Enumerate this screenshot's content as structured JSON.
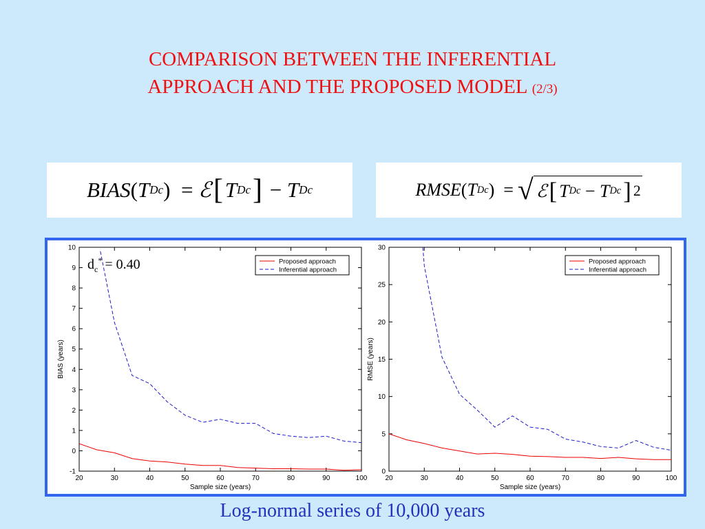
{
  "slide": {
    "title_line1": "COMPARISON BETWEEN THE INFERENTIAL",
    "title_line2": "APPROACH AND THE PROPOSED MODEL",
    "title_suffix": "(2/3)",
    "caption": "Log-normal series of 10,000 years"
  },
  "formulas": {
    "bias": {
      "lhs": "BIAS",
      "var": "T",
      "sub": "Dc",
      "equals": "=",
      "expect": "ℰ",
      "minus": "−"
    },
    "rmse": {
      "lhs": "RMSE",
      "var": "T",
      "sub": "Dc",
      "equals": "=",
      "expect": "ℰ",
      "minus": "−",
      "power": "2"
    }
  },
  "colors": {
    "proposed": "#ee0000",
    "inferential": "#1a1acc",
    "panel_border": "#3366ee",
    "title": "#ee1111",
    "caption": "#2233bb"
  },
  "chart_data": [
    {
      "type": "line",
      "xlabel": "Sample size (years)",
      "ylabel": "BIAS (years)",
      "xlim": [
        20,
        100
      ],
      "ylim": [
        -1,
        10
      ],
      "xticks": [
        20,
        30,
        40,
        50,
        60,
        70,
        80,
        90,
        100
      ],
      "yticks": [
        -1,
        0,
        1,
        2,
        3,
        4,
        5,
        6,
        7,
        8,
        9,
        10
      ],
      "legend_position": "top-right",
      "annotation": {
        "base": "d",
        "sub": "c",
        "sup": "*",
        "text": "= 0.40"
      },
      "x": [
        20,
        25,
        30,
        35,
        40,
        45,
        50,
        55,
        60,
        65,
        70,
        75,
        80,
        85,
        90,
        95,
        100
      ],
      "series": [
        {
          "name": "Proposed approach",
          "style": "solid",
          "values": [
            0.35,
            0.05,
            -0.1,
            -0.38,
            -0.5,
            -0.55,
            -0.65,
            -0.72,
            -0.72,
            -0.82,
            -0.85,
            -0.88,
            -0.88,
            -0.9,
            -0.9,
            -0.96,
            -0.93
          ]
        },
        {
          "name": "Inferential approach",
          "style": "dashed",
          "x": [
            26,
            30,
            35,
            40,
            45,
            50,
            55,
            60,
            65,
            70,
            75,
            80,
            85,
            90,
            95,
            100
          ],
          "values": [
            9.8,
            6.3,
            3.7,
            3.3,
            2.4,
            1.75,
            1.4,
            1.55,
            1.35,
            1.35,
            0.85,
            0.72,
            0.65,
            0.72,
            0.48,
            0.4
          ]
        }
      ]
    },
    {
      "type": "line",
      "xlabel": "Sample size (years)",
      "ylabel": "RMSE (years)",
      "xlim": [
        20,
        100
      ],
      "ylim": [
        0,
        30
      ],
      "xticks": [
        20,
        30,
        40,
        50,
        60,
        70,
        80,
        90,
        100
      ],
      "yticks": [
        0,
        5,
        10,
        15,
        20,
        25,
        30
      ],
      "legend_position": "top-right",
      "x": [
        20,
        25,
        30,
        35,
        40,
        45,
        50,
        55,
        60,
        65,
        70,
        75,
        80,
        85,
        90,
        95,
        100
      ],
      "series": [
        {
          "name": "Proposed approach",
          "style": "solid",
          "values": [
            5.0,
            4.2,
            3.7,
            3.1,
            2.7,
            2.3,
            2.4,
            2.25,
            2.0,
            1.95,
            1.85,
            1.85,
            1.7,
            1.85,
            1.65,
            1.55,
            1.55
          ]
        },
        {
          "name": "Inferential approach",
          "style": "dashed",
          "x": [
            29.6,
            30,
            35,
            40,
            45,
            50,
            55,
            60,
            65,
            70,
            75,
            80,
            85,
            90,
            95,
            100
          ],
          "values": [
            30,
            27.5,
            15.3,
            10.3,
            8.2,
            5.9,
            7.4,
            5.9,
            5.6,
            4.3,
            3.9,
            3.3,
            3.1,
            4.1,
            3.2,
            2.8
          ]
        }
      ]
    }
  ]
}
